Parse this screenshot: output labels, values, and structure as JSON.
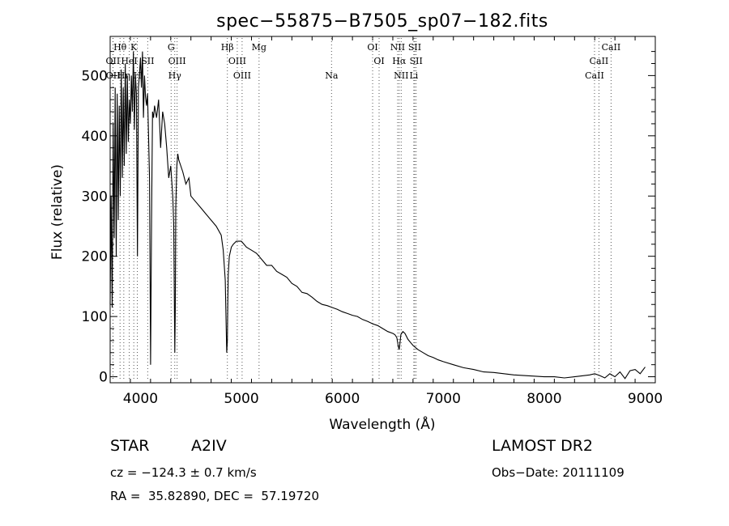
{
  "chart_data": {
    "type": "line",
    "title": "spec−55875−B7505_sp07−182.fits",
    "xlabel": "Wavelength (Å)",
    "ylabel": "Flux (relative)",
    "xlim": [
      3700,
      9100
    ],
    "ylim": [
      -10,
      565
    ],
    "xticks": [
      4000,
      5000,
      6000,
      7000,
      8000,
      9000
    ],
    "yticks": [
      0,
      100,
      200,
      300,
      400,
      500
    ],
    "series": [
      {
        "color": "#000000",
        "x": [
          3700,
          3710,
          3720,
          3730,
          3740,
          3750,
          3760,
          3770,
          3780,
          3790,
          3800,
          3810,
          3820,
          3830,
          3840,
          3850,
          3860,
          3870,
          3880,
          3890,
          3900,
          3910,
          3920,
          3930,
          3940,
          3950,
          3960,
          3970,
          3980,
          3990,
          4000,
          4010,
          4020,
          4030,
          4040,
          4050,
          4060,
          4070,
          4080,
          4090,
          4100,
          4110,
          4120,
          4130,
          4140,
          4160,
          4180,
          4200,
          4220,
          4240,
          4260,
          4280,
          4300,
          4320,
          4330,
          4340,
          4345,
          4350,
          4360,
          4370,
          4380,
          4400,
          4420,
          4450,
          4480,
          4500,
          4550,
          4600,
          4650,
          4700,
          4750,
          4800,
          4820,
          4840,
          4850,
          4855,
          4861,
          4866,
          4870,
          4880,
          4900,
          4920,
          4950,
          5000,
          5050,
          5100,
          5150,
          5200,
          5250,
          5300,
          5350,
          5400,
          5450,
          5500,
          5550,
          5600,
          5650,
          5700,
          5750,
          5800,
          5850,
          5900,
          5950,
          6000,
          6050,
          6100,
          6150,
          6200,
          6250,
          6300,
          6350,
          6400,
          6450,
          6500,
          6520,
          6540,
          6555,
          6563,
          6570,
          6580,
          6600,
          6620,
          6650,
          6700,
          6750,
          6800,
          6850,
          6900,
          6950,
          7000,
          7100,
          7200,
          7300,
          7400,
          7500,
          7600,
          7650,
          7700,
          7800,
          7900,
          8000,
          8100,
          8200,
          8300,
          8400,
          8450,
          8500,
          8550,
          8600,
          8650,
          8700,
          8750,
          8800,
          8850,
          8900,
          8950,
          9000
        ],
        "y": [
          120,
          300,
          115,
          420,
          230,
          480,
          200,
          470,
          260,
          450,
          300,
          510,
          330,
          480,
          350,
          520,
          370,
          500,
          390,
          460,
          420,
          500,
          440,
          540,
          410,
          500,
          470,
          200,
          480,
          500,
          530,
          480,
          540,
          430,
          500,
          465,
          450,
          470,
          400,
          330,
          20,
          260,
          440,
          430,
          450,
          430,
          460,
          380,
          440,
          420,
          380,
          330,
          350,
          300,
          250,
          40,
          110,
          280,
          350,
          370,
          360,
          350,
          340,
          320,
          330,
          300,
          290,
          280,
          270,
          260,
          250,
          235,
          210,
          160,
          80,
          40,
          60,
          130,
          170,
          200,
          215,
          220,
          225,
          225,
          215,
          210,
          205,
          195,
          185,
          185,
          175,
          170,
          165,
          155,
          150,
          140,
          138,
          132,
          125,
          120,
          118,
          115,
          112,
          108,
          105,
          102,
          100,
          95,
          92,
          88,
          85,
          80,
          75,
          72,
          70,
          65,
          50,
          45,
          55,
          70,
          75,
          72,
          62,
          52,
          45,
          40,
          35,
          32,
          28,
          25,
          20,
          15,
          12,
          8,
          7,
          5,
          4,
          3,
          2,
          1,
          0,
          0,
          -2,
          0,
          2,
          3,
          5,
          2,
          -2,
          5,
          0,
          8,
          -3,
          10,
          12,
          5,
          16
        ]
      }
    ],
    "lines": [
      {
        "label": "Hθ",
        "x": 3798,
        "row": 1
      },
      {
        "label": "K",
        "x": 3934,
        "row": 1
      },
      {
        "label": "G",
        "x": 4304,
        "row": 1
      },
      {
        "label": "Hβ",
        "x": 4861,
        "row": 1
      },
      {
        "label": "Mg",
        "x": 5175,
        "row": 1
      },
      {
        "label": "OI",
        "x": 6300,
        "row": 1
      },
      {
        "label": "NII",
        "x": 6548,
        "row": 1
      },
      {
        "label": "SII",
        "x": 6717,
        "row": 1
      },
      {
        "label": "CaII",
        "x": 8662,
        "row": 1
      },
      {
        "label": "OII",
        "x": 3727,
        "row": 2
      },
      {
        "label": "HeI",
        "x": 3889,
        "row": 2
      },
      {
        "label": "SII",
        "x": 4072,
        "row": 2
      },
      {
        "label": "OIII",
        "x": 4363,
        "row": 2
      },
      {
        "label": "OIII",
        "x": 4959,
        "row": 2
      },
      {
        "label": "OI",
        "x": 6364,
        "row": 2
      },
      {
        "label": "Hα",
        "x": 6563,
        "row": 2
      },
      {
        "label": "SII",
        "x": 6731,
        "row": 2
      },
      {
        "label": "CaII",
        "x": 8542,
        "row": 2
      },
      {
        "label": "OII",
        "x": 3729,
        "row": 3
      },
      {
        "label": "Hη",
        "x": 3835,
        "row": 3
      },
      {
        "label": "H",
        "x": 3969,
        "row": 3
      },
      {
        "label": "Hγ",
        "x": 4340,
        "row": 3
      },
      {
        "label": "OIII",
        "x": 5007,
        "row": 3
      },
      {
        "label": "Na",
        "x": 5893,
        "row": 3
      },
      {
        "label": "NII",
        "x": 6583,
        "row": 3
      },
      {
        "label": "Li",
        "x": 6708,
        "row": 3
      },
      {
        "label": "CaII",
        "x": 8498,
        "row": 3
      }
    ]
  },
  "info": {
    "object_class": "STAR",
    "subclass": "A2IV",
    "survey": "LAMOST DR2",
    "redshift": "cz = −124.3 ± 0.7 km/s",
    "obs_date": "Obs−Date: 20111109",
    "coords": "RA =  35.82890, DEC =  57.19720"
  }
}
